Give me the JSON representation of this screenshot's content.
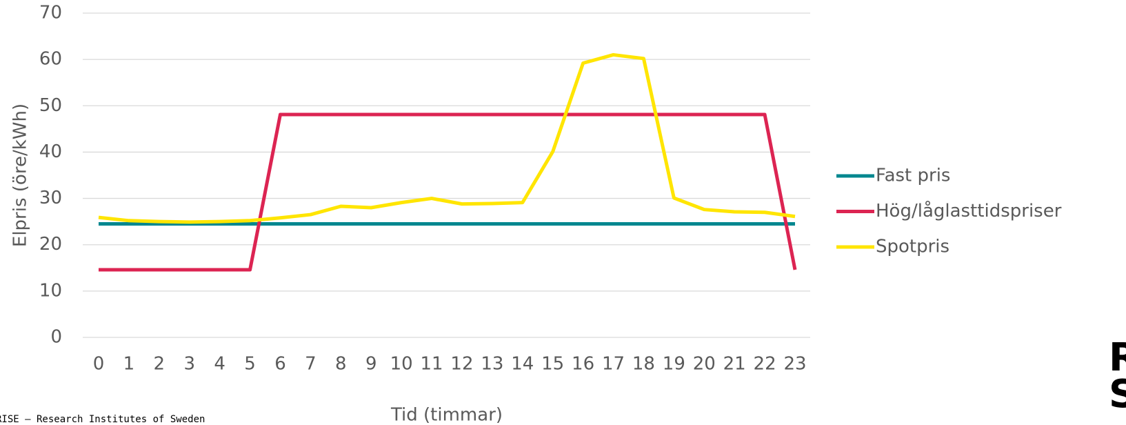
{
  "chart_data": {
    "type": "line",
    "x_label": "Tid (timmar)",
    "y_label": "Elpris (öre/kWh)",
    "categories": [
      "0",
      "1",
      "2",
      "3",
      "4",
      "5",
      "6",
      "7",
      "8",
      "9",
      "10",
      "11",
      "12",
      "13",
      "14",
      "15",
      "16",
      "17",
      "18",
      "19",
      "20",
      "21",
      "22",
      "23"
    ],
    "series": [
      {
        "name": "Fast pris",
        "color": "#00878f",
        "values": [
          24.5,
          24.5,
          24.5,
          24.5,
          24.5,
          24.5,
          24.5,
          24.5,
          24.5,
          24.5,
          24.5,
          24.5,
          24.5,
          24.5,
          24.5,
          24.5,
          24.5,
          24.5,
          24.5,
          24.5,
          24.5,
          24.5,
          24.5,
          24.5
        ]
      },
      {
        "name": "Hög/låglasttidspriser",
        "color": "#dc2452",
        "values": [
          14.6,
          14.6,
          14.6,
          14.6,
          14.6,
          14.6,
          48.1,
          48.1,
          48.1,
          48.1,
          48.1,
          48.1,
          48.1,
          48.1,
          48.1,
          48.1,
          48.1,
          48.1,
          48.1,
          48.1,
          48.1,
          48.1,
          48.1,
          14.6
        ]
      },
      {
        "name": "Spotpris",
        "color": "#ffe500",
        "values": [
          25.9,
          25.2,
          25.0,
          24.9,
          25.0,
          25.2,
          25.8,
          26.5,
          28.3,
          28.0,
          29.1,
          30.0,
          28.8,
          28.9,
          29.1,
          40.1,
          59.2,
          61.0,
          60.2,
          30.1,
          27.6,
          27.1,
          27.0,
          26.1
        ]
      }
    ],
    "ylim": [
      0,
      70
    ],
    "yticks": [
      0,
      10,
      20,
      30,
      40,
      50,
      60,
      70
    ],
    "grid": true,
    "legend": "right",
    "footer": "RISE – Research Institutes of Sweden",
    "logo": [
      "RI",
      "SE"
    ]
  }
}
